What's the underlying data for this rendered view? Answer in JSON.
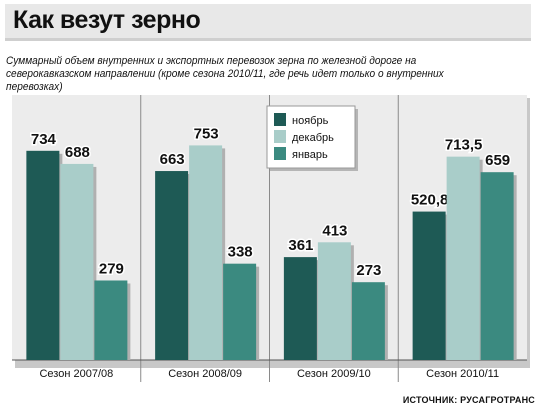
{
  "header": {
    "title": "Как везут зерно",
    "subtitle": "Суммарный объем внутренних и экспортных перевозок зерна по железной дороге на северокавказском направлении (кроме сезона 2010/11, где речь идет только о внутренних перевозках)"
  },
  "source": "ИСТОЧНИК: РУСАГРОТРАНС",
  "colors": {
    "background_panel": "#ececec",
    "november": "#1e5a55",
    "december": "#a9cdc9",
    "january": "#3b8a80"
  },
  "chart_data": {
    "type": "bar",
    "categories": [
      "Сезон 2007/08",
      "Сезон 2008/09",
      "Сезон 2009/10",
      "Сезон 2010/11"
    ],
    "series": [
      {
        "name": "ноябрь",
        "values": [
          734,
          663,
          361,
          520.8
        ],
        "labels": [
          "734",
          "663",
          "361",
          "520,8"
        ]
      },
      {
        "name": "декабрь",
        "values": [
          688,
          753,
          413,
          713.5
        ],
        "labels": [
          "688",
          "753",
          "413",
          "713,5"
        ]
      },
      {
        "name": "январь",
        "values": [
          279,
          338,
          273,
          659
        ],
        "labels": [
          "279",
          "338",
          "273",
          "659"
        ]
      }
    ],
    "ylim": [
      0,
      800
    ],
    "legend_position": "top-center",
    "grid": false
  }
}
